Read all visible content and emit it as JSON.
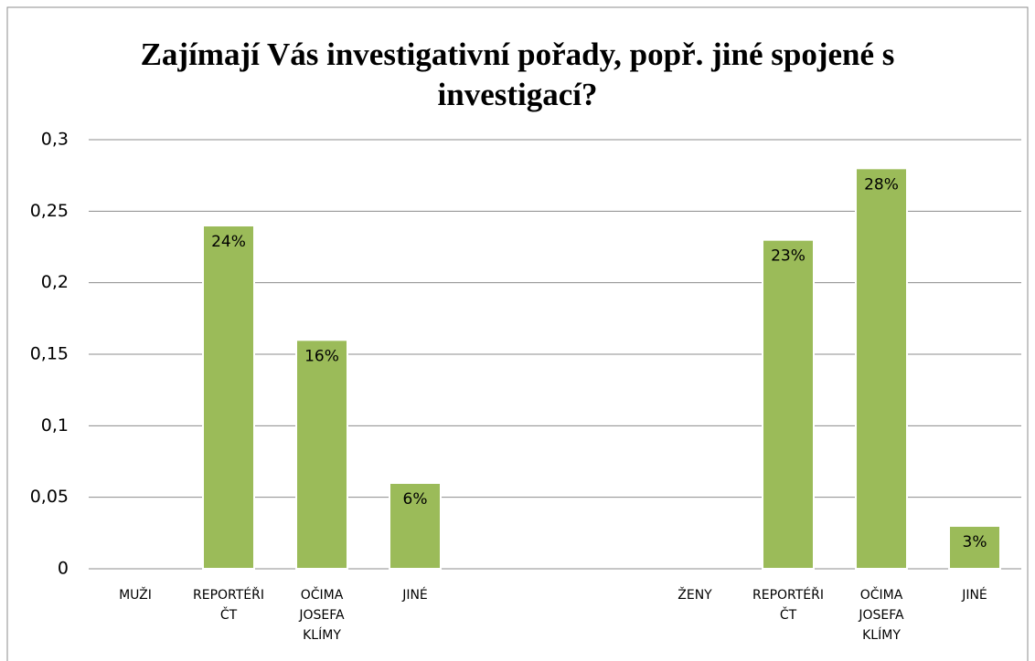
{
  "chart_data": {
    "type": "bar",
    "title": "Zajímají Vás investigativní pořady, popř. jiné spojené s investigací?",
    "categories": [
      "MUŽI",
      "REPORTÉŘI ČT",
      "OČIMA JOSEFA KLÍMY",
      "JINÉ",
      null,
      null,
      "ŽENY",
      "REPORTÉŘI ČT",
      "OČIMA JOSEFA KLÍMY",
      "JINÉ"
    ],
    "values": [
      null,
      0.24,
      0.16,
      0.06,
      null,
      null,
      null,
      0.23,
      0.28,
      0.03
    ],
    "value_labels": [
      null,
      "24%",
      "16%",
      "6%",
      null,
      null,
      null,
      "23%",
      "28%",
      "3%"
    ],
    "color": "#9bbb59",
    "ylim": [
      0,
      0.3
    ],
    "yticks": [
      0,
      {
        "value": 0.05,
        "label": "0,05"
      },
      {
        "value": 0.1,
        "label": "0,1"
      },
      {
        "value": 0.15,
        "label": "0,15"
      },
      {
        "value": 0.2,
        "label": "0,2"
      },
      {
        "value": 0.25,
        "label": "0,25"
      },
      {
        "value": 0.3,
        "label": "0,3"
      }
    ],
    "grid": true
  }
}
